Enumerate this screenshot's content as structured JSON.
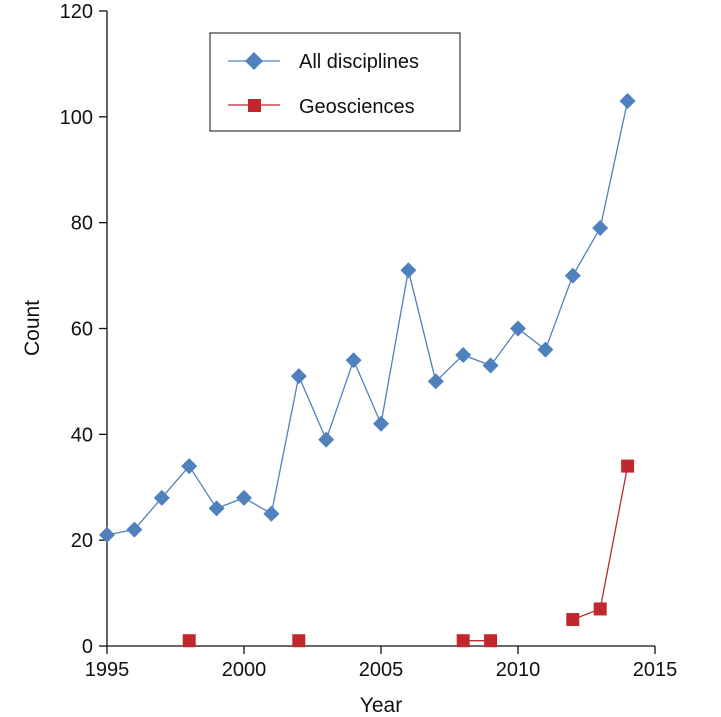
{
  "chart_data": {
    "type": "line",
    "title": "",
    "xlabel": "Year",
    "ylabel": "Count",
    "xlim": [
      1995,
      2015
    ],
    "ylim": [
      0,
      120
    ],
    "x_ticks": [
      1995,
      2000,
      2005,
      2010,
      2015
    ],
    "y_ticks": [
      0,
      20,
      40,
      60,
      80,
      100,
      120
    ],
    "grid": false,
    "legend_position": "top-center",
    "series": [
      {
        "name": "All disciplines",
        "color": "#4f81bd",
        "marker": "diamond",
        "points": [
          {
            "x": 1995,
            "y": 21
          },
          {
            "x": 1996,
            "y": 22
          },
          {
            "x": 1997,
            "y": 28
          },
          {
            "x": 1998,
            "y": 34
          },
          {
            "x": 1999,
            "y": 26
          },
          {
            "x": 2000,
            "y": 28
          },
          {
            "x": 2001,
            "y": 25
          },
          {
            "x": 2002,
            "y": 51
          },
          {
            "x": 2003,
            "y": 39
          },
          {
            "x": 2004,
            "y": 54
          },
          {
            "x": 2005,
            "y": 42
          },
          {
            "x": 2006,
            "y": 71
          },
          {
            "x": 2007,
            "y": 50
          },
          {
            "x": 2008,
            "y": 55
          },
          {
            "x": 2009,
            "y": 53
          },
          {
            "x": 2010,
            "y": 60
          },
          {
            "x": 2011,
            "y": 56
          },
          {
            "x": 2012,
            "y": 70
          },
          {
            "x": 2013,
            "y": 79
          },
          {
            "x": 2014,
            "y": 103
          }
        ]
      },
      {
        "name": "Geosciences",
        "color": "#c0282e",
        "marker": "square",
        "points": [
          {
            "x": 1998,
            "y": 1
          },
          {
            "x": 2002,
            "y": 1
          },
          {
            "x": 2008,
            "y": 1
          },
          {
            "x": 2009,
            "y": 1
          },
          {
            "x": 2012,
            "y": 5
          },
          {
            "x": 2013,
            "y": 7
          },
          {
            "x": 2014,
            "y": 34
          }
        ],
        "segments": [
          [
            2008,
            2009
          ],
          [
            2012,
            2013,
            2014
          ]
        ]
      }
    ]
  }
}
